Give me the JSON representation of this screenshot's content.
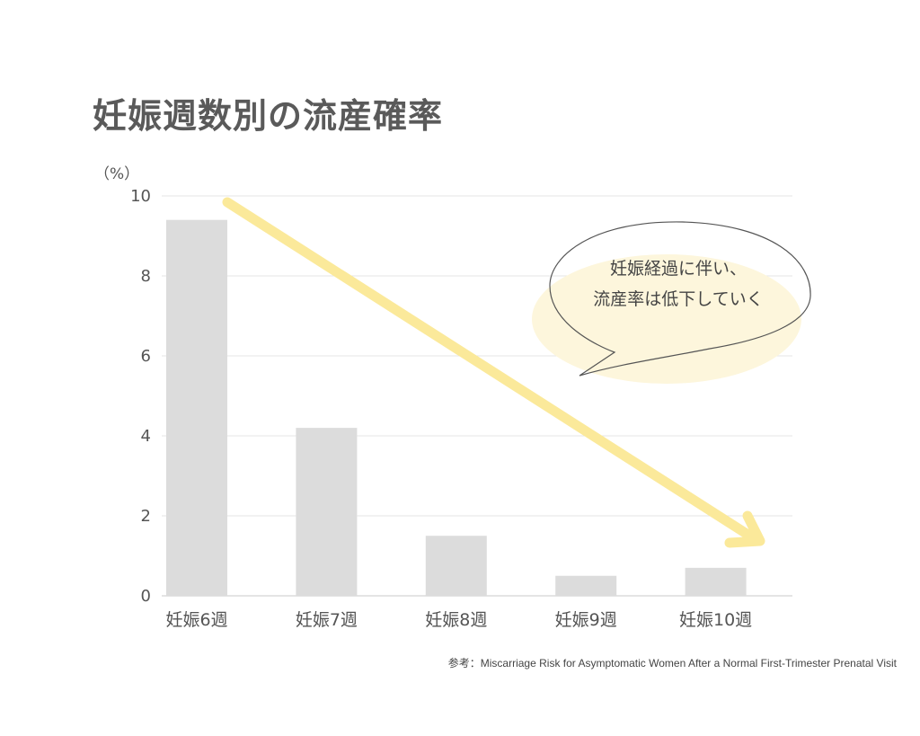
{
  "chart_data": {
    "type": "bar",
    "title": "妊娠週数別の流産確率",
    "unit_label": "（%）",
    "categories": [
      "妊娠6週",
      "妊娠7週",
      "妊娠8週",
      "妊娠9週",
      "妊娠10週"
    ],
    "values": [
      9.4,
      4.2,
      1.5,
      0.5,
      0.7
    ],
    "ylim": [
      0,
      10
    ],
    "yticks": [
      0,
      2,
      4,
      6,
      8,
      10
    ],
    "grid": true,
    "bar_color": "#dcdcdc",
    "arrow_color": "#fbe99a",
    "annotation_lines": [
      "妊娠経過に伴い、",
      "流産率は低下していく"
    ],
    "source": "参考：Miscarriage Risk for Asymptomatic Women After a Normal First-Trimester Prenatal Visit"
  }
}
